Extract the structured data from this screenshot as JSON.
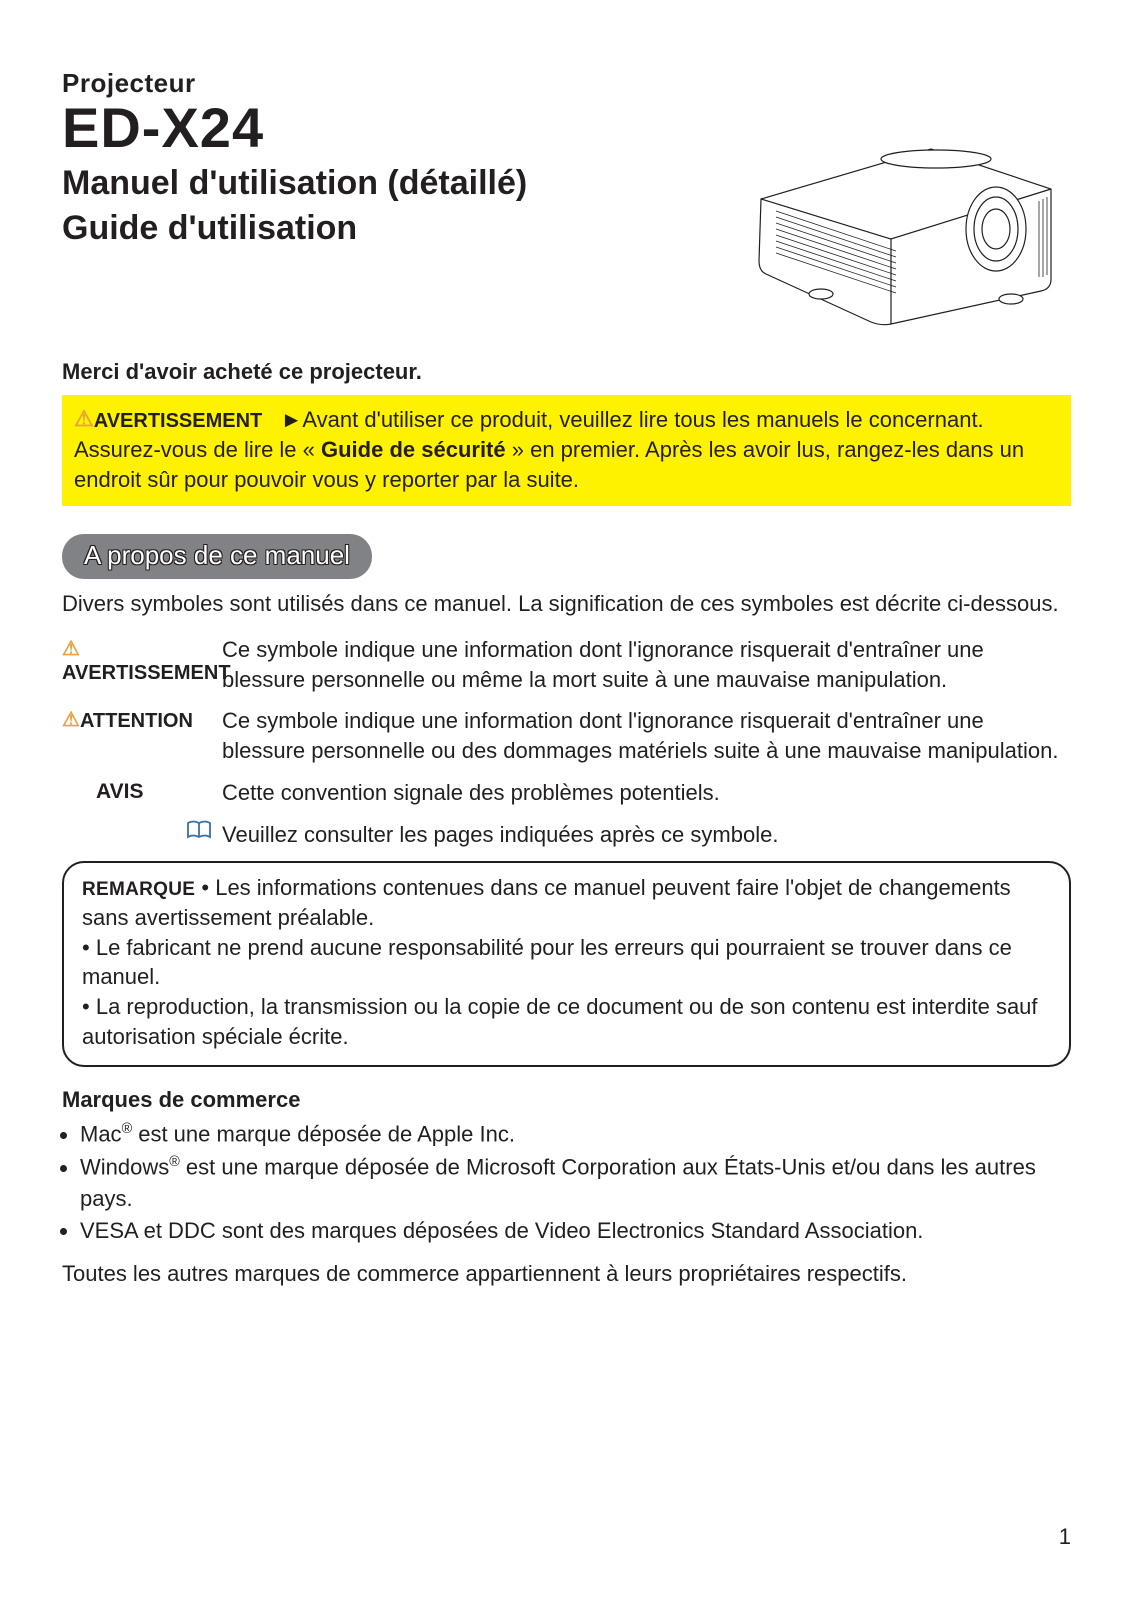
{
  "header": {
    "overline": "Projecteur",
    "model": "ED-X24",
    "subtitle_line1": "Manuel d'utilisation (détaillé)",
    "subtitle_line2": "Guide d'utilisation"
  },
  "thanks": "Merci d'avoir acheté ce projecteur.",
  "warning_box": {
    "label": "AVERTISSEMENT",
    "arrow": "►",
    "text_before_bold": "Avant d'utiliser ce produit, veuillez lire tous les manuels le concernant. Assurez-vous de lire le « ",
    "bold": "Guide de sécurité",
    "text_after_bold": " » en premier. Après les avoir lus, rangez-les dans un endroit sûr pour pouvoir vous y reporter par la suite."
  },
  "section_heading": "A propos de ce manuel",
  "intro_text": "Divers symboles sont utilisés dans ce manuel. La signification de ces symboles est décrite ci-dessous.",
  "symbols": {
    "avertissement": {
      "label": "AVERTISSEMENT",
      "desc": "Ce symbole indique une information dont l'ignorance risquerait d'entraîner une blessure personnelle ou même la mort suite à une mauvaise manipulation."
    },
    "attention": {
      "label": "ATTENTION",
      "desc": "Ce symbole indique une information dont l'ignorance risquerait d'entraîner une blessure personnelle ou des dommages matériels suite à une mauvaise manipulation."
    },
    "avis": {
      "label": "AVIS",
      "desc": "Cette convention signale des problèmes potentiels."
    },
    "book": {
      "desc": "Veuillez consulter les pages indiquées après ce symbole."
    }
  },
  "remarque": {
    "label": "REMARQUE",
    "bullets": [
      "Les informations contenues dans ce manuel peuvent faire l'objet de changements sans avertissement préalable.",
      "Le fabricant ne prend aucune responsabilité pour les erreurs qui pourraient se trouver dans ce manuel.",
      "La reproduction, la transmission ou la copie de ce document ou de son contenu est interdite sauf autorisation spéciale écrite."
    ]
  },
  "trademarks": {
    "heading": "Marques de commerce",
    "items_html": [
      "Mac<sup>®</sup> est une marque déposée de Apple Inc.",
      "Windows<sup>®</sup> est une marque déposée de Microsoft Corporation aux États-Unis et/ou dans les autres pays.",
      "VESA et DDC sont des marques déposées de Video Electronics Standard Association."
    ],
    "footer": "Toutes les autres marques de commerce appartiennent à leurs propriétaires respectifs."
  },
  "page_number": "1",
  "colors": {
    "warning_bg": "#fff200",
    "warning_triangle": "#e8a33d",
    "pill_bg": "#808285",
    "pill_text": "#ffffff",
    "text": "#231f20",
    "book_icon": "#3a6ea5"
  }
}
